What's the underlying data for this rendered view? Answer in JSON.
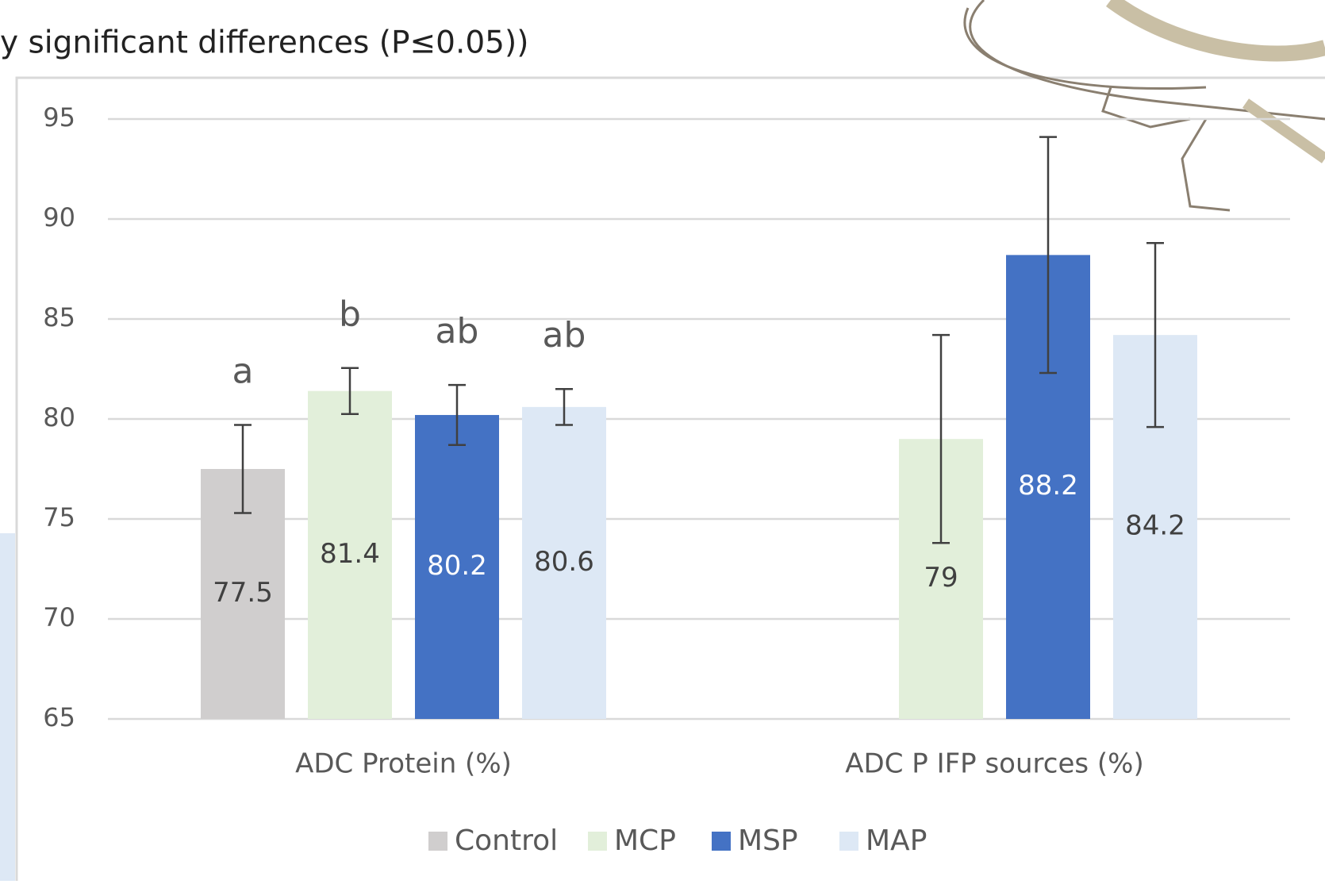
{
  "chart_data": {
    "type": "bar",
    "title": "y significant differences (P≤0.05))",
    "categories": [
      "ADC Protein (%)",
      "ADC P IFP sources (%)"
    ],
    "series": [
      {
        "name": "Control",
        "color": "#d0cece",
        "label_color": "#404040",
        "values": [
          77.5,
          null
        ],
        "errors": [
          2.2,
          null
        ],
        "annotations": [
          "a",
          null
        ]
      },
      {
        "name": "MCP",
        "color": "#e2efda",
        "label_color": "#404040",
        "values": [
          81.4,
          79
        ],
        "errors": [
          1.15,
          5.2
        ],
        "annotations": [
          "b",
          null
        ]
      },
      {
        "name": "MSP",
        "color": "#4472c4",
        "label_color": "#ffffff",
        "values": [
          80.2,
          88.2
        ],
        "errors": [
          1.5,
          5.9
        ],
        "annotations": [
          "ab",
          null
        ]
      },
      {
        "name": "MAP",
        "color": "#dde8f5",
        "label_color": "#404040",
        "values": [
          80.6,
          84.2
        ],
        "errors": [
          0.9,
          4.6
        ],
        "annotations": [
          "ab",
          null
        ]
      }
    ],
    "ylim": [
      65,
      95
    ],
    "yticks": [
      65,
      70,
      75,
      80,
      85,
      90,
      95
    ],
    "grid": true,
    "legend": "bottom"
  }
}
